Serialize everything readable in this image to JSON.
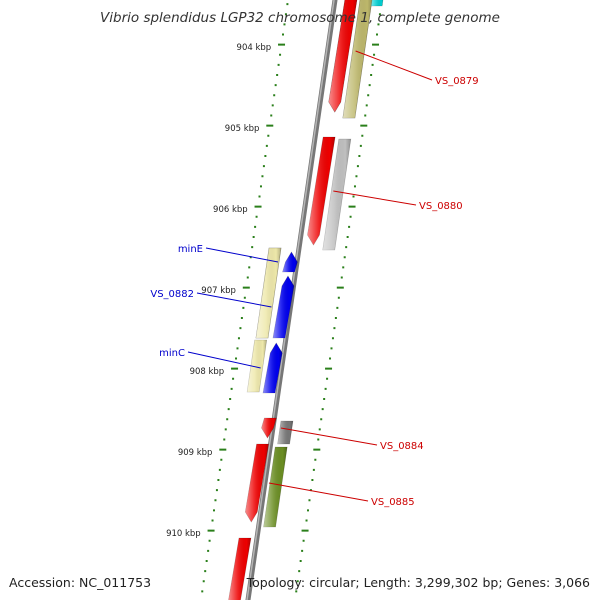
{
  "title": "Vibrio splendidus LGP32 chromosome 1, complete genome",
  "footer": {
    "accession": "Accession: NC_011753",
    "topology": "Topology: circular; Length: 3,299,302 bp; Genes: 3,066"
  },
  "colors": {
    "backbone": "#8a8a8a",
    "tick": "#2a7f1a",
    "tick_label": "#222222",
    "label_forward": "#0000cc",
    "label_reverse": "#cc0000",
    "gene_red": "#ee0000",
    "gene_blue": "#0000ee",
    "gene_khaki": "#bdb76b",
    "gene_yellow": "#eee8aa",
    "gene_silver": "#c0c0c0",
    "gene_olive": "#6b8e23",
    "gene_gray": "#777777",
    "gene_cyan": "#00ced1"
  },
  "ticks": {
    "labels": [
      "904 kbp",
      "905 kbp",
      "906 kbp",
      "907 kbp",
      "908 kbp",
      "909 kbp",
      "910 kbp"
    ]
  },
  "features": [
    {
      "label": "",
      "side": "reverse",
      "ring": 1,
      "color": "gene_red",
      "strand": "-"
    },
    {
      "label": "",
      "side": "reverse",
      "ring": 2,
      "color": "gene_khaki"
    },
    {
      "label": "",
      "side": "reverse",
      "ring": 3,
      "color": "gene_cyan"
    },
    {
      "label": "VS_0879",
      "side": "reverse",
      "ring": 1,
      "color": "gene_red",
      "strand": "-"
    },
    {
      "label": "",
      "side": "reverse",
      "ring": 2,
      "color": "gene_khaki"
    },
    {
      "label": "VS_0880",
      "side": "reverse",
      "ring": 1,
      "color": "gene_red",
      "strand": "-"
    },
    {
      "label": "",
      "side": "reverse",
      "ring": 2,
      "color": "gene_silver"
    },
    {
      "label": "minE",
      "side": "forward",
      "ring": 1,
      "color": "gene_blue",
      "strand": "+"
    },
    {
      "label": "",
      "side": "forward",
      "ring": 2,
      "color": "gene_yellow"
    },
    {
      "label": "VS_0882",
      "side": "forward",
      "ring": 1,
      "color": "gene_blue",
      "strand": "+"
    },
    {
      "label": "",
      "side": "forward",
      "ring": 2,
      "color": "gene_yellow"
    },
    {
      "label": "minC",
      "side": "forward",
      "ring": 1,
      "color": "gene_blue",
      "strand": "+"
    },
    {
      "label": "",
      "side": "forward",
      "ring": 2,
      "color": "gene_yellow"
    },
    {
      "label": "VS_0884",
      "side": "reverse",
      "ring": 1,
      "color": "gene_red",
      "strand": "-"
    },
    {
      "label": "",
      "side": "reverse",
      "ring": 2,
      "color": "gene_gray"
    },
    {
      "label": "VS_0885",
      "side": "reverse",
      "ring": 1,
      "color": "gene_red",
      "strand": "-"
    },
    {
      "label": "",
      "side": "reverse",
      "ring": 2,
      "color": "gene_olive"
    },
    {
      "label": "",
      "side": "reverse",
      "ring": 1,
      "color": "gene_red",
      "strand": "-"
    }
  ]
}
